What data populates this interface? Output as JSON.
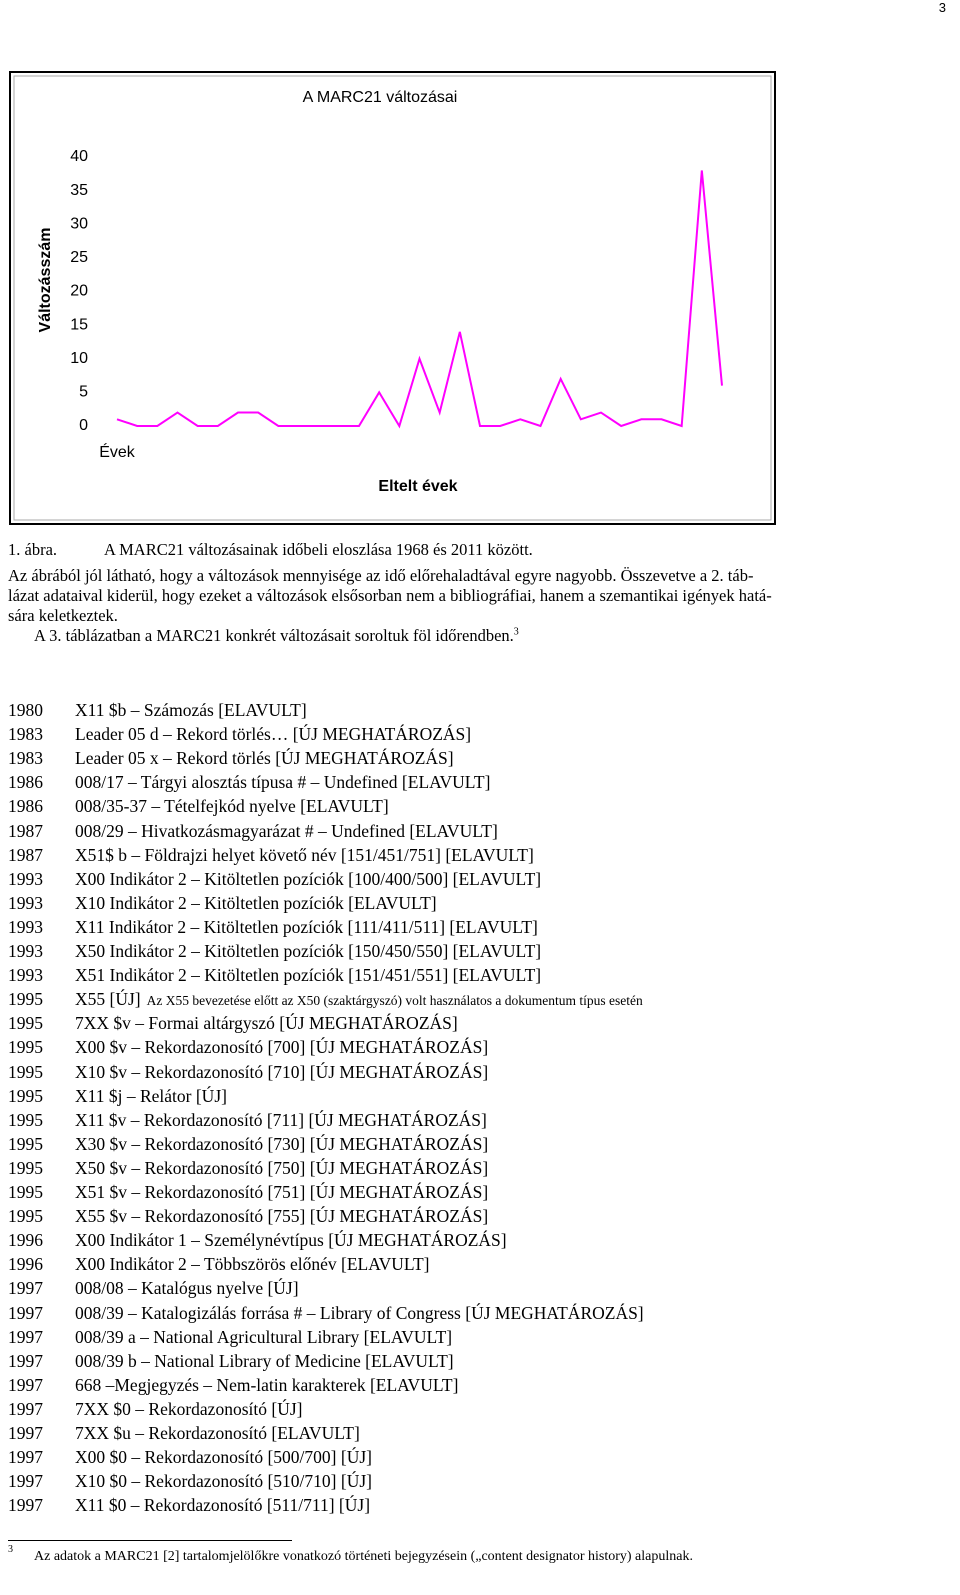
{
  "chart_data": {
    "type": "line",
    "title": "A MARC21 változásai",
    "ylabel": "Változásszám",
    "xlabel": "Eltelt évek",
    "categories": [
      "Évek",
      null,
      null,
      null,
      null,
      null,
      null,
      null,
      null,
      null,
      null,
      null,
      null,
      null,
      null,
      null,
      null,
      null,
      null,
      null,
      null,
      null,
      null,
      null,
      null,
      null,
      null,
      null,
      null,
      null,
      null
    ],
    "series": [
      {
        "name": "Változásszám",
        "color": "#ff00ff",
        "values": [
          1,
          0,
          0,
          2,
          0,
          0,
          2,
          2,
          0,
          0,
          0,
          0,
          0,
          5,
          0,
          10,
          2,
          14,
          0,
          0,
          1,
          0,
          7,
          1,
          2,
          0,
          1,
          1,
          0,
          38,
          6
        ]
      }
    ],
    "ylim": [
      0,
      40
    ],
    "yticks": [
      0,
      5,
      10,
      15,
      20,
      25,
      30,
      35,
      40
    ],
    "grid": false
  },
  "doc": {
    "page_number": "3",
    "caption": {
      "label": "1. ábra.",
      "text": "A MARC21 változásainak időbeli eloszlása 1968 és 2011 között."
    },
    "paragraph_lines": [
      "Az ábrából jól látható, hogy a változások mennyisége az idő előrehaladtával egyre nagyobb. Összevetve a 2. táb-",
      "lázat adataival kiderül, hogy ezeket a változások elsősorban nem a bibliográfiai, hanem a szemantikai igények hatá-",
      "sára keletkeztek."
    ],
    "paragraph2": "A 3. táblázatban a MARC21 konkrét változásait soroltuk föl időrendben.",
    "footnote_ref": "3",
    "entries": [
      {
        "year": "1980",
        "text": "X11 $b – Számozás [ELAVULT]"
      },
      {
        "year": "1983",
        "text": "Leader 05 d – Rekord törlés… [ÚJ MEGHATÁROZÁS]"
      },
      {
        "year": "1983",
        "text": "Leader 05 x – Rekord törlés [ÚJ MEGHATÁROZÁS]"
      },
      {
        "year": "1986",
        "text": "008/17 – Tárgyi alosztás típusa # – Undefined [ELAVULT]"
      },
      {
        "year": "1986",
        "text": "008/35-37 – Tételfejkód nyelve [ELAVULT]"
      },
      {
        "year": "1987",
        "text": "008/29 – Hivatkozásmagyarázat # – Undefined [ELAVULT]"
      },
      {
        "year": "1987",
        "text": "X51$ b – Földrajzi helyet követő név [151/451/751] [ELAVULT]"
      },
      {
        "year": "1993",
        "text": "X00 Indikátor 2 – Kitöltetlen pozíciók [100/400/500] [ELAVULT]"
      },
      {
        "year": "1993",
        "text": "X10 Indikátor 2 – Kitöltetlen pozíciók [ELAVULT]"
      },
      {
        "year": "1993",
        "text": "X11 Indikátor 2 – Kitöltetlen pozíciók [111/411/511] [ELAVULT]"
      },
      {
        "year": "1993",
        "text": "X50 Indikátor 2 – Kitöltetlen pozíciók [150/450/550] [ELAVULT]"
      },
      {
        "year": "1993",
        "text": "X51 Indikátor 2 – Kitöltetlen pozíciók [151/451/551] [ELAVULT]"
      },
      {
        "year": "1995",
        "text": "X55 [ÚJ]",
        "note": "Az X55 bevezetése előtt az X50 (szaktárgyszó) volt használatos a dokumentum típus esetén"
      },
      {
        "year": "1995",
        "text": "7XX $v – Formai altárgyszó [ÚJ MEGHATÁROZÁS]"
      },
      {
        "year": "1995",
        "text": "X00 $v – Rekordazonosító [700] [ÚJ MEGHATÁROZÁS]"
      },
      {
        "year": "1995",
        "text": "X10 $v – Rekordazonosító [710] [ÚJ MEGHATÁROZÁS]"
      },
      {
        "year": "1995",
        "text": "X11 $j – Relátor [ÚJ]"
      },
      {
        "year": "1995",
        "text": "X11 $v – Rekordazonosító [711] [ÚJ MEGHATÁROZÁS]"
      },
      {
        "year": "1995",
        "text": "X30 $v – Rekordazonosító [730] [ÚJ MEGHATÁROZÁS]"
      },
      {
        "year": "1995",
        "text": "X50 $v – Rekordazonosító [750] [ÚJ MEGHATÁROZÁS]"
      },
      {
        "year": "1995",
        "text": "X51 $v – Rekordazonosító [751] [ÚJ MEGHATÁROZÁS]"
      },
      {
        "year": "1995",
        "text": "X55 $v – Rekordazonosító [755] [ÚJ MEGHATÁROZÁS]"
      },
      {
        "year": "1996",
        "text": "X00 Indikátor 1 – Személynévtípus [ÚJ MEGHATÁROZÁS]"
      },
      {
        "year": "1996",
        "text": "X00 Indikátor 2 – Többszörös előnév [ELAVULT]"
      },
      {
        "year": "1997",
        "text": "008/08 – Katalógus nyelve [ÚJ]"
      },
      {
        "year": "1997",
        "text": "008/39 – Katalogizálás forrása # – Library of Congress [ÚJ MEGHATÁROZÁS]"
      },
      {
        "year": "1997",
        "text": "008/39 a – National Agricultural Library [ELAVULT]"
      },
      {
        "year": "1997",
        "text": "008/39 b – National Library of Medicine [ELAVULT]"
      },
      {
        "year": "1997",
        "text": "668 –Megjegyzés – Nem-latin karakterek [ELAVULT]"
      },
      {
        "year": "1997",
        "text": "7XX $0 – Rekordazonosító [ÚJ]"
      },
      {
        "year": "1997",
        "text": "7XX $u – Rekordazonosító [ELAVULT]"
      },
      {
        "year": "1997",
        "text": "X00 $0 – Rekordazonosító [500/700] [ÚJ]"
      },
      {
        "year": "1997",
        "text": "X10 $0 – Rekordazonosító [510/710] [ÚJ]"
      },
      {
        "year": "1997",
        "text": "X11 $0 – Rekordazonosító [511/711] [ÚJ]"
      }
    ],
    "footnote": {
      "mark": "3",
      "text": "Az adatok a MARC21 [2] tartalomjelölőkre vonatkozó történeti bejegyzésein („content designator history) alapulnak."
    }
  }
}
